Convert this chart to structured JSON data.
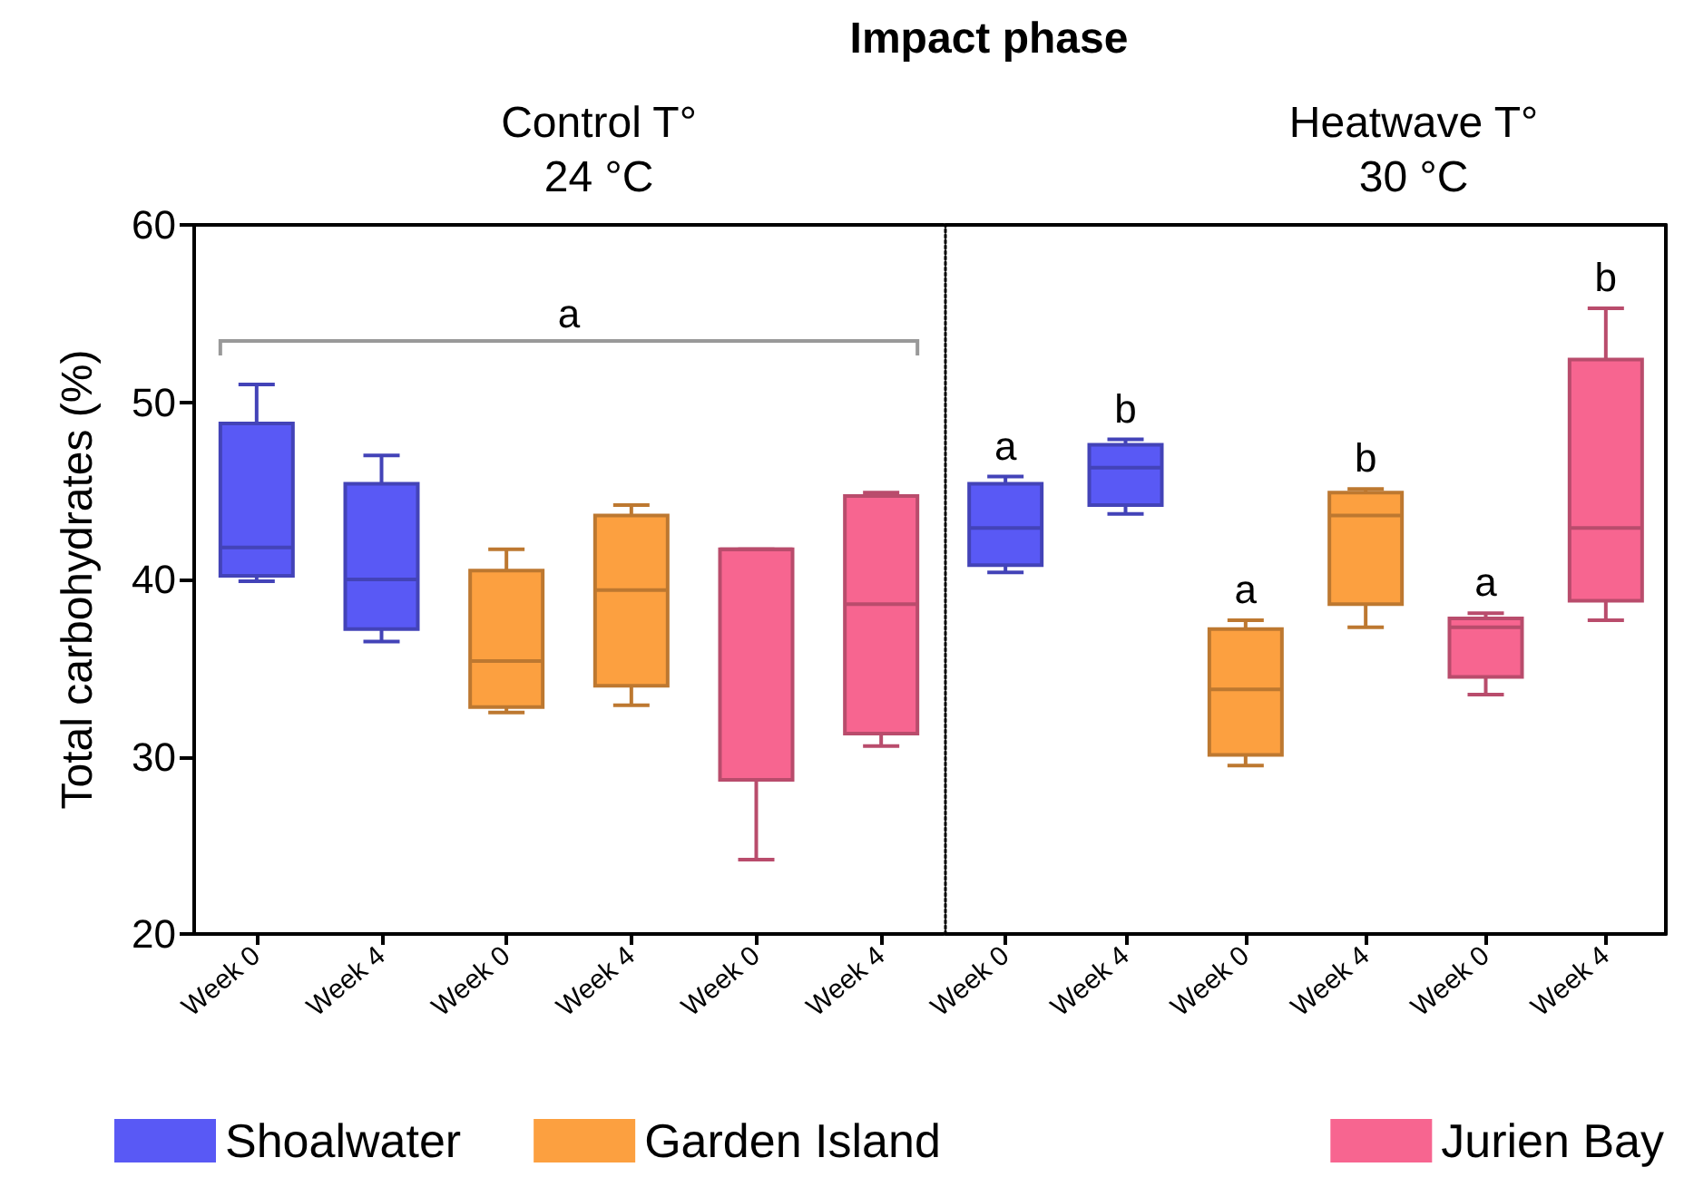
{
  "chart_data": [
    {
      "type": "box",
      "title": "Impact phase",
      "subtitle": "Control T°\n24 °C",
      "ylabel": "Total carbohydrates (%)",
      "categories": [
        "Week 0",
        "Week 4",
        "Week 0",
        "Week 4",
        "Week 0",
        "Week 4"
      ],
      "ylim": [
        20,
        60
      ],
      "yticks": [
        20,
        30,
        40,
        50,
        60
      ],
      "grid": false,
      "legend": "bottom left",
      "annotations": [
        "a"
      ],
      "series": [
        {
          "name": "Shoalwater",
          "color": "#5959f5",
          "boxes": [
            {
              "low": 39.9,
              "q1": 40.2,
              "median": 41.8,
              "q3": 48.8,
              "high": 51.0
            },
            {
              "low": 36.5,
              "q1": 37.2,
              "median": 40.0,
              "q3": 45.4,
              "high": 47.0
            },
            null,
            null,
            null,
            null
          ]
        },
        {
          "name": "Garden Island",
          "color": "#fca040",
          "boxes": [
            null,
            null,
            {
              "low": 32.5,
              "q1": 32.8,
              "median": 35.4,
              "q3": 40.5,
              "high": 41.7
            },
            {
              "low": 32.9,
              "q1": 34.0,
              "median": 39.4,
              "q3": 43.6,
              "high": 44.2
            },
            null,
            null
          ]
        },
        {
          "color": "#f76590",
          "boxes": [
            null,
            null,
            null,
            null,
            {
              "low": 24.2,
              "q1": 28.7,
              "median": 41.7,
              "q3": 41.7,
              "high": 41.7
            },
            {
              "low": 30.6,
              "q1": 31.3,
              "median": 38.6,
              "q3": 44.7,
              "high": 44.9
            }
          ]
        }
      ]
    },
    {
      "type": "box",
      "subtitle": "Heatwave T°\n30 °C",
      "categories": [
        "Week 0",
        "Week 4",
        "Week 0",
        "Week 4",
        "Week 0",
        "Week 4"
      ],
      "ylim": [
        20,
        60
      ],
      "tick_labels": "x",
      "grid": false,
      "legend": "bottom right",
      "annotations": [
        "a",
        "b",
        "a",
        "b",
        "a",
        "b"
      ],
      "series": [
        {
          "color": "#5959f5",
          "boxes": [
            {
              "low": 40.4,
              "q1": 40.8,
              "median": 42.9,
              "q3": 45.4,
              "high": 45.8
            },
            {
              "low": 43.7,
              "q1": 44.2,
              "median": 46.3,
              "q3": 47.6,
              "high": 47.9
            },
            null,
            null,
            null,
            null
          ]
        },
        {
          "color": "#fca040",
          "boxes": [
            null,
            null,
            {
              "low": 29.5,
              "q1": 30.1,
              "median": 33.8,
              "q3": 37.2,
              "high": 37.7
            },
            {
              "low": 37.3,
              "q1": 38.6,
              "median": 43.6,
              "q3": 44.9,
              "high": 45.1
            },
            null,
            null
          ]
        },
        {
          "name": "Jurien Bay",
          "color": "#f76590",
          "boxes": [
            null,
            null,
            null,
            null,
            {
              "low": 33.5,
              "q1": 34.5,
              "median": 37.3,
              "q3": 37.8,
              "high": 38.1
            },
            {
              "low": 37.7,
              "q1": 38.8,
              "median": 42.9,
              "q3": 52.4,
              "high": 55.3
            }
          ]
        }
      ]
    }
  ]
}
